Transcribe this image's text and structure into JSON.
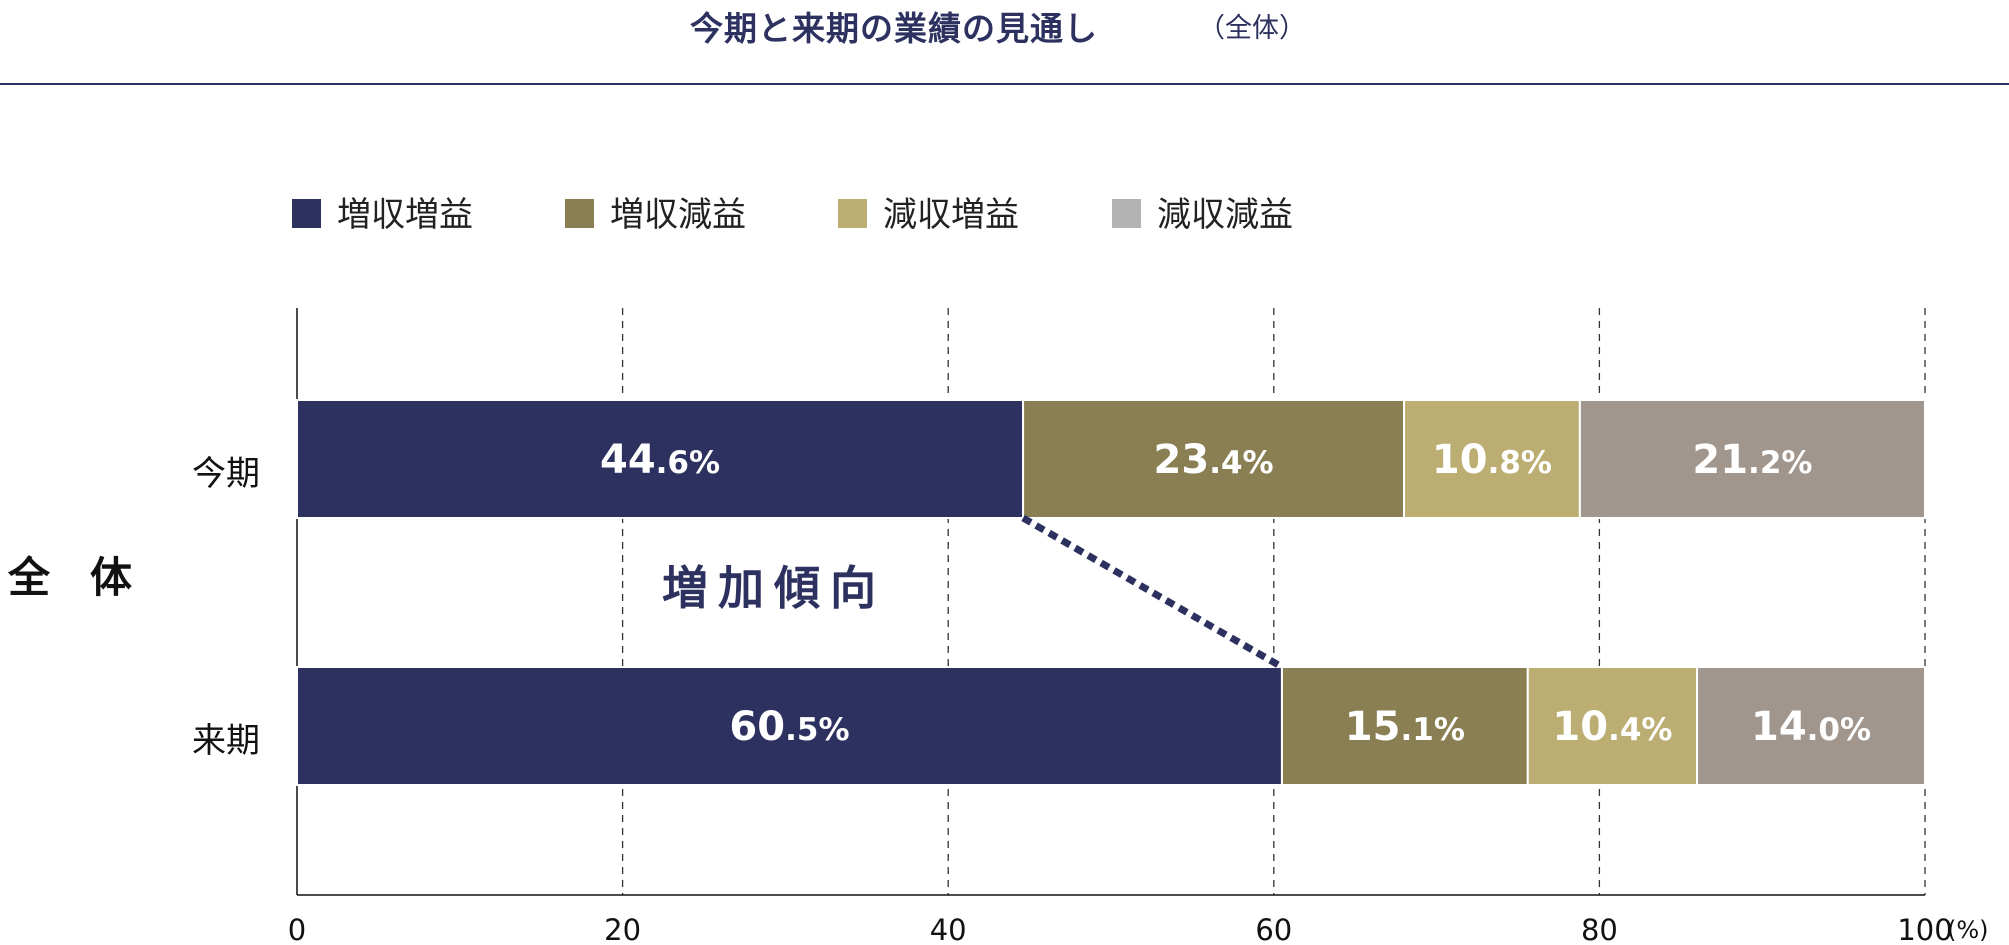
{
  "title": {
    "main": "今期と来期の業績の見通し",
    "sub": "（全体）"
  },
  "chart_data": {
    "type": "bar",
    "orientation": "horizontal",
    "stacked": true,
    "group_label": "全体",
    "categories": [
      "今期",
      "来期"
    ],
    "series": [
      {
        "name": "増収増益",
        "color": "#2d3160",
        "values": [
          44.6,
          60.5
        ]
      },
      {
        "name": "増収減益",
        "color": "#8a7f52",
        "values": [
          23.4,
          15.1
        ]
      },
      {
        "name": "減収増益",
        "color": "#bcae72",
        "values": [
          10.8,
          10.4
        ]
      },
      {
        "name": "減収減益",
        "color": "#a1968d",
        "values": [
          21.2,
          14.0
        ]
      }
    ],
    "legend_colors": [
      "#2d3160",
      "#8a7f52",
      "#bcae72",
      "#b3b3b3"
    ],
    "xlim": [
      0,
      100
    ],
    "xticks": [
      0,
      20,
      40,
      60,
      80,
      100
    ],
    "xunit": "(%)",
    "grid": "vertical-dashed",
    "legend_position": "top-left",
    "annotation": {
      "text": "増加傾向",
      "from": "今期 増収増益",
      "to": "来期 増収増益"
    }
  }
}
